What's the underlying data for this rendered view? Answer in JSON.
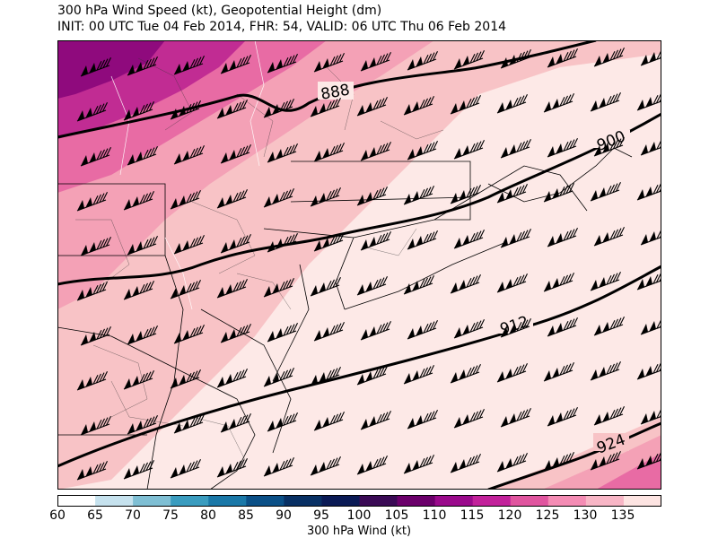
{
  "title": {
    "line1": "300 hPa Wind Speed (kt), Geopotential Height (dm)",
    "line2": "INIT: 00 UTC Tue 04 Feb 2014, FHR: 54, VALID: 06 UTC Thu 06 Feb 2014"
  },
  "contours": [
    {
      "label": "888"
    },
    {
      "label": "900"
    },
    {
      "label": "912"
    },
    {
      "label": "924"
    }
  ],
  "colorbar": {
    "label": "300 hPa Wind (kt)",
    "ticks": [
      "60",
      "65",
      "70",
      "75",
      "80",
      "85",
      "90",
      "95",
      "100",
      "105",
      "110",
      "115",
      "120",
      "125",
      "130",
      "135"
    ],
    "colors": [
      "#ffffff",
      "#c6e2ee",
      "#7fbfd4",
      "#3a9cbf",
      "#1a78a8",
      "#0b5087",
      "#083064",
      "#0a1a55",
      "#3a0a55",
      "#6b006b",
      "#9a0a8c",
      "#c2229b",
      "#e0559f",
      "#f48cb4",
      "#f8b6c6",
      "#fde4e2"
    ]
  },
  "colors": {
    "bg": "#fde9e7",
    "band125": "#f8c3c6",
    "band120": "#f4a1b6",
    "band115": "#e86ba4",
    "band110": "#c12c93",
    "band105": "#8f0a7d",
    "line": "#000000"
  }
}
